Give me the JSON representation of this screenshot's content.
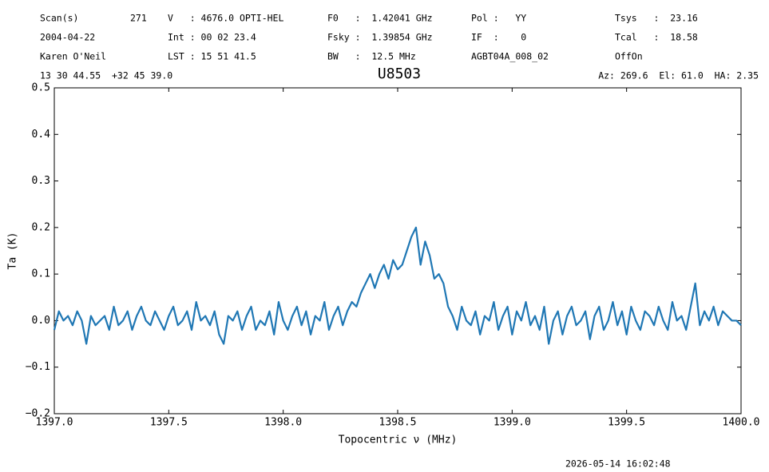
{
  "chart_data": {
    "type": "line",
    "title": "U8503",
    "annotations": [
      "Scan(s)",
      "271",
      "V   : 4676.0 OPTI-HEL",
      "F0   :  1.42041 GHz",
      "Pol :   YY",
      "Tsys   :  23.16",
      "2004-04-22",
      "Int : 00 02 23.4",
      "Fsky :  1.39854 GHz",
      "IF  :    0",
      "Tcal   :  18.58",
      "Karen O'Neil",
      "LST : 15 51 41.5",
      "BW   :  12.5 MHz",
      "AGBT04A_008_02",
      "OffOn",
      "13 30 44.55  +32 45 39.0",
      "Az: 269.6  El: 61.0  HA: 2.35",
      "2026-05-14 16:02:48"
    ],
    "xlabel": "Topocentric ν (MHz)",
    "ylabel": "Ta (K)",
    "color": "#1f77b4",
    "xlim": [
      1397,
      1400
    ],
    "ylim": [
      -0.2,
      0.5
    ],
    "xticks": [
      {
        "value": 1397,
        "label": "1397.0"
      },
      {
        "value": 1397.5,
        "label": "1397.5"
      },
      {
        "value": 1398,
        "label": "1398.0"
      },
      {
        "value": 1398.5,
        "label": "1398.5"
      },
      {
        "value": 1399,
        "label": "1399.0"
      },
      {
        "value": 1399.5,
        "label": "1399.5"
      },
      {
        "value": 1400,
        "label": "1400.0"
      }
    ],
    "yticks": [
      {
        "value": -0.2,
        "label": "−0.2"
      },
      {
        "value": -0.1,
        "label": "−0.1"
      },
      {
        "value": 0,
        "label": "0.0"
      },
      0.1,
      0.2,
      0.3,
      0.4,
      0.5
    ],
    "x": [
      1397,
      1397.02,
      1397.04,
      1397.06,
      1397.08,
      1397.1,
      1397.12,
      1397.14,
      1397.16,
      1397.18,
      1397.2,
      1397.22,
      1397.24,
      1397.26,
      1397.28,
      1397.3,
      1397.32,
      1397.34,
      1397.36,
      1397.38,
      1397.4,
      1397.42,
      1397.44,
      1397.46,
      1397.48,
      1397.5,
      1397.52,
      1397.54,
      1397.56,
      1397.58,
      1397.6,
      1397.62,
      1397.64,
      1397.66,
      1397.68,
      1397.7,
      1397.72,
      1397.74,
      1397.76,
      1397.78,
      1397.8,
      1397.82,
      1397.84,
      1397.86,
      1397.88,
      1397.9,
      1397.92,
      1397.94,
      1397.96,
      1397.98,
      1398,
      1398.02,
      1398.04,
      1398.06,
      1398.08,
      1398.1,
      1398.12,
      1398.14,
      1398.16,
      1398.18,
      1398.2,
      1398.22,
      1398.24,
      1398.26,
      1398.28,
      1398.3,
      1398.32,
      1398.34,
      1398.36,
      1398.38,
      1398.4,
      1398.42,
      1398.44,
      1398.46,
      1398.48,
      1398.5,
      1398.52,
      1398.54,
      1398.56,
      1398.58,
      1398.6,
      1398.62,
      1398.64,
      1398.66,
      1398.68,
      1398.7,
      1398.72,
      1398.74,
      1398.76,
      1398.78,
      1398.8,
      1398.82,
      1398.84,
      1398.86,
      1398.88,
      1398.9,
      1398.92,
      1398.94,
      1398.96,
      1398.98,
      1399,
      1399.02,
      1399.04,
      1399.06,
      1399.08,
      1399.1,
      1399.12,
      1399.14,
      1399.16,
      1399.18,
      1399.2,
      1399.22,
      1399.24,
      1399.26,
      1399.28,
      1399.3,
      1399.32,
      1399.34,
      1399.36,
      1399.38,
      1399.4,
      1399.42,
      1399.44,
      1399.46,
      1399.48,
      1399.5,
      1399.52,
      1399.54,
      1399.56,
      1399.58,
      1399.6,
      1399.62,
      1399.64,
      1399.66,
      1399.68,
      1399.7,
      1399.72,
      1399.74,
      1399.76,
      1399.78,
      1399.8,
      1399.82,
      1399.84,
      1399.86,
      1399.88,
      1399.9,
      1399.92,
      1399.94,
      1399.96,
      1399.98,
      1400
    ],
    "values": [
      -0.02,
      0.02,
      0,
      0.01,
      -0.01,
      0.02,
      0,
      -0.05,
      0.01,
      -0.01,
      0,
      0.01,
      -0.02,
      0.03,
      -0.01,
      0,
      0.02,
      -0.02,
      0.01,
      0.03,
      0,
      -0.01,
      0.02,
      0,
      -0.02,
      0.01,
      0.03,
      -0.01,
      0,
      0.02,
      -0.02,
      0.04,
      0,
      0.01,
      -0.01,
      0.02,
      -0.03,
      -0.05,
      0.01,
      0,
      0.02,
      -0.02,
      0.01,
      0.03,
      -0.02,
      0,
      -0.01,
      0.02,
      -0.03,
      0.04,
      0,
      -0.02,
      0.01,
      0.03,
      -0.01,
      0.02,
      -0.03,
      0.01,
      0,
      0.04,
      -0.02,
      0.01,
      0.03,
      -0.01,
      0.02,
      0.04,
      0.03,
      0.06,
      0.08,
      0.1,
      0.07,
      0.1,
      0.12,
      0.09,
      0.13,
      0.11,
      0.12,
      0.15,
      0.18,
      0.2,
      0.12,
      0.17,
      0.14,
      0.09,
      0.1,
      0.08,
      0.03,
      0.01,
      -0.02,
      0.03,
      0,
      -0.01,
      0.02,
      -0.03,
      0.01,
      0,
      0.04,
      -0.02,
      0.01,
      0.03,
      -0.03,
      0.02,
      0,
      0.04,
      -0.01,
      0.01,
      -0.02,
      0.03,
      -0.05,
      0,
      0.02,
      -0.03,
      0.01,
      0.03,
      -0.01,
      0,
      0.02,
      -0.04,
      0.01,
      0.03,
      -0.02,
      0,
      0.04,
      -0.01,
      0.02,
      -0.03,
      0.03,
      0,
      -0.02,
      0.02,
      0.01,
      -0.01,
      0.03,
      0,
      -0.02,
      0.04,
      0,
      0.01,
      -0.02,
      0.03,
      0.08,
      -0.01,
      0.02,
      0,
      0.03,
      -0.01,
      0.02,
      0.01,
      0,
      0,
      -0.01
    ]
  }
}
